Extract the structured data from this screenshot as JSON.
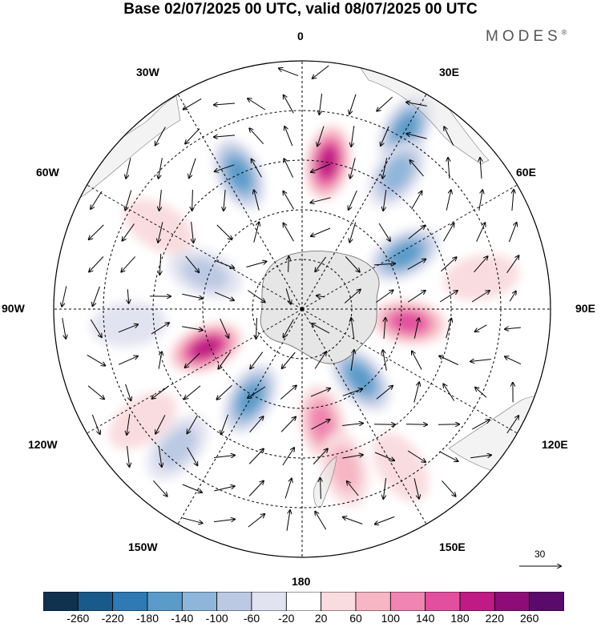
{
  "title": "Base 02/07/2025 00 UTC, valid 08/07/2025 00 UTC",
  "brand": "MODES",
  "brand_mark": "®",
  "lon_labels": {
    "n0": "0",
    "e30": "30E",
    "e60": "60E",
    "e90": "90E",
    "e120": "120E",
    "e150": "150E",
    "s180": "180",
    "w150": "150W",
    "w120": "120W",
    "w90": "90W",
    "w60": "60W",
    "w30": "30W"
  },
  "reference_vector": "30",
  "colorbar": {
    "ticks": [
      "-260",
      "-220",
      "-180",
      "-140",
      "-100",
      "-60",
      "-20",
      "20",
      "60",
      "100",
      "140",
      "180",
      "220",
      "260"
    ],
    "colors": [
      "#10324f",
      "#1a5a8a",
      "#2f79b5",
      "#5a9bc9",
      "#8fb6da",
      "#bcc9e3",
      "#e2e3f0",
      "#ffffff",
      "#f9dcdf",
      "#f6b6c3",
      "#ef85b0",
      "#e24f9e",
      "#c01a84",
      "#8e0c78",
      "#5a0a6a"
    ]
  },
  "anomalies": [
    {
      "lon": 30,
      "colat": 50,
      "value": -150
    },
    {
      "lon": 10,
      "colat": 36,
      "value": 190
    },
    {
      "lon": 35,
      "colat": 40,
      "value": -110
    },
    {
      "lon": 62,
      "colat": 28,
      "value": -160
    },
    {
      "lon": 97,
      "colat": 26,
      "value": 180
    },
    {
      "lon": 140,
      "colat": 22,
      "value": -150
    },
    {
      "lon": 170,
      "colat": 28,
      "value": 110
    },
    {
      "lon": 165,
      "colat": 40,
      "value": 100
    },
    {
      "lon": -150,
      "colat": 25,
      "value": -170
    },
    {
      "lon": -112,
      "colat": 25,
      "value": 200
    },
    {
      "lon": -70,
      "colat": 25,
      "value": -90
    },
    {
      "lon": -25,
      "colat": 36,
      "value": -150
    },
    {
      "lon": 148,
      "colat": 45,
      "value": 60
    },
    {
      "lon": -138,
      "colat": 45,
      "value": -90
    },
    {
      "lon": -125,
      "colat": 47,
      "value": 60
    },
    {
      "lon": 80,
      "colat": 44,
      "value": 60
    },
    {
      "lon": -95,
      "colat": 42,
      "value": -60
    },
    {
      "lon": -60,
      "colat": 40,
      "value": 60
    }
  ]
}
